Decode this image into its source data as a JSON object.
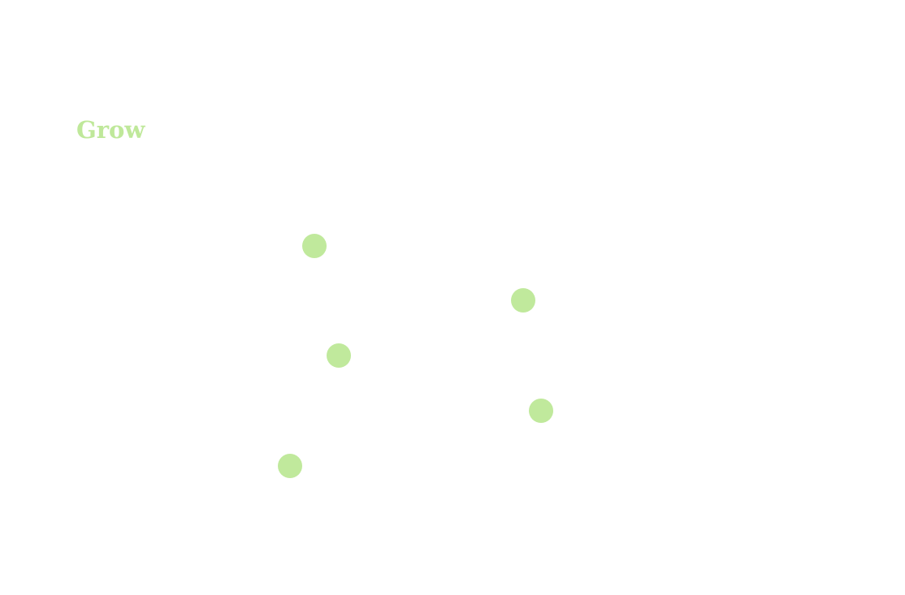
{
  "header": {
    "title": "Grow"
  }
}
